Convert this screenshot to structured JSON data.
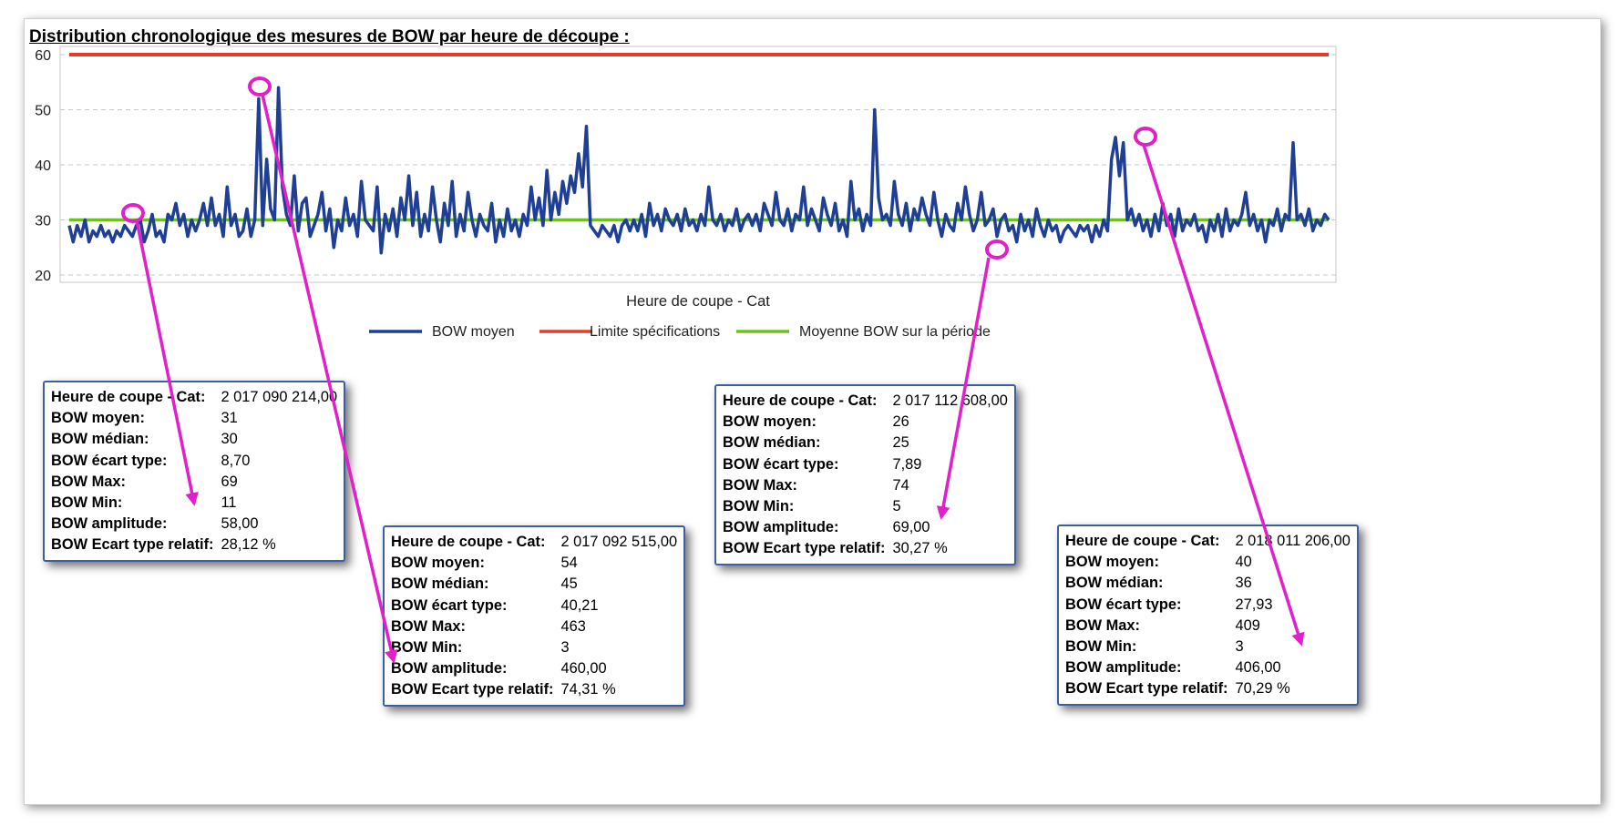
{
  "chart_data": {
    "type": "line",
    "title": "Distribution chronologique des mesures de BOW par heure de découpe :",
    "xlabel": "Heure de coupe - Cat",
    "ylabel": "",
    "ylim": [
      20,
      60
    ],
    "yticks": [
      "60",
      "50",
      "40",
      "30",
      "20"
    ],
    "grid": "horizontal-dashed",
    "legend_position": "bottom-center",
    "series": [
      {
        "name": "BOW moyen",
        "color": "#1f3f94",
        "values": [
          29,
          26,
          29,
          27,
          30,
          26,
          28,
          27,
          29,
          27,
          28,
          26,
          28,
          27,
          29,
          28,
          27,
          29,
          30,
          26,
          28,
          31,
          27,
          28,
          26,
          31,
          30,
          33,
          29,
          31,
          27,
          30,
          28,
          30,
          33,
          29,
          34,
          29,
          31,
          27,
          36,
          29,
          31,
          27,
          28,
          32,
          27,
          30,
          52,
          29,
          41,
          32,
          30,
          54,
          36,
          31,
          29,
          38,
          28,
          33,
          34,
          27,
          29,
          31,
          35,
          28,
          32,
          25,
          30,
          28,
          34,
          29,
          31,
          27,
          37,
          30,
          29,
          28,
          36,
          24,
          31,
          28,
          32,
          27,
          34,
          30,
          38,
          29,
          35,
          27,
          31,
          28,
          36,
          30,
          26,
          33,
          29,
          37,
          27,
          31,
          28,
          35,
          30,
          27,
          31,
          29,
          28,
          33,
          26,
          30,
          27,
          32,
          28,
          30,
          27,
          31,
          29,
          36,
          30,
          34,
          29,
          39,
          30,
          35,
          31,
          37,
          33,
          38,
          35,
          42,
          36,
          47,
          29,
          28,
          27,
          29,
          28,
          27,
          29,
          26,
          29,
          30,
          28,
          30,
          28,
          31,
          27,
          33,
          29,
          31,
          28,
          32,
          30,
          29,
          31,
          28,
          32,
          29,
          30,
          28,
          31,
          29,
          36,
          30,
          29,
          31,
          28,
          30,
          29,
          32,
          28,
          30,
          31,
          29,
          31,
          28,
          33,
          31,
          29,
          35,
          30,
          29,
          32,
          28,
          31,
          30,
          36,
          29,
          32,
          30,
          28,
          34,
          31,
          29,
          33,
          28,
          30,
          27,
          37,
          30,
          32,
          28,
          31,
          29,
          50,
          34,
          30,
          31,
          29,
          37,
          31,
          29,
          33,
          28,
          32,
          30,
          34,
          31,
          29,
          35,
          30,
          27,
          31,
          29,
          28,
          33,
          30,
          36,
          31,
          28,
          30,
          35,
          29,
          30,
          32,
          27,
          30,
          31,
          28,
          29,
          26,
          31,
          28,
          30,
          27,
          32,
          29,
          27,
          30,
          28,
          29,
          26,
          28,
          29,
          28,
          27,
          29,
          28,
          29,
          26,
          29,
          27,
          30,
          28,
          41,
          45,
          38,
          44,
          30,
          32,
          29,
          31,
          28,
          30,
          27,
          31,
          28,
          33,
          29,
          31,
          27,
          32,
          28,
          30,
          29,
          31,
          28,
          29,
          26,
          30,
          28,
          31,
          27,
          32,
          28,
          30,
          29,
          31,
          35,
          29,
          31,
          28,
          30,
          26,
          30,
          29,
          32,
          28,
          31,
          30,
          44,
          30,
          31,
          29,
          32,
          28,
          30,
          29,
          31,
          30
        ]
      },
      {
        "name": "Limite spécifications",
        "color": "#e53c2a",
        "values": [
          60
        ]
      },
      {
        "name": "Moyenne BOW sur la période",
        "color": "#6cc31f",
        "values": [
          30
        ]
      }
    ]
  },
  "tooltip_labels": [
    "Heure de coupe - Cat:",
    "BOW moyen:",
    "BOW médian:",
    "BOW écart type:",
    "BOW Max:",
    "BOW Min:",
    "BOW amplitude:",
    "BOW Ecart type relatif:"
  ],
  "tooltips": [
    {
      "values": [
        "2 017 090 214,00",
        "31",
        "30",
        "8,70",
        "69",
        "11",
        "58,00",
        "28,12 %"
      ]
    },
    {
      "values": [
        "2 017 092 515,00",
        "54",
        "45",
        "40,21",
        "463",
        "3",
        "460,00",
        "74,31 %"
      ]
    },
    {
      "values": [
        "2 017 112 608,00",
        "26",
        "25",
        "7,89",
        "74",
        "5",
        "69,00",
        "30,27 %"
      ]
    },
    {
      "values": [
        "2 018 011 206,00",
        "40",
        "36",
        "27,93",
        "409",
        "3",
        "406,00",
        "70,29 %"
      ]
    }
  ],
  "colors": {
    "highlight": "#e020c8",
    "tooltip_border": "#3b5fa0"
  }
}
